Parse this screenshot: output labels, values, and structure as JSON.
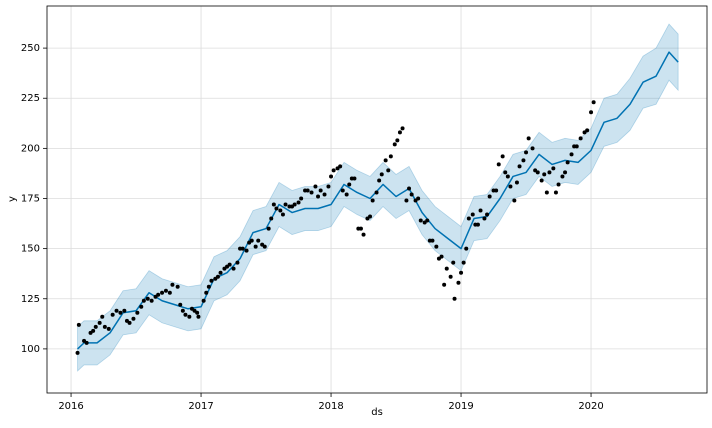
{
  "chart_data": {
    "type": "forecast",
    "xlabel": "ds",
    "ylabel": "y",
    "xlim": [
      2015.815,
      2020.892
    ],
    "ylim": [
      78,
      271
    ],
    "xticks": [
      2016,
      2017,
      2018,
      2019,
      2020
    ],
    "yticks": [
      100,
      125,
      150,
      175,
      200,
      225,
      250
    ],
    "grid": true,
    "forecast": {
      "color": "#0072B2",
      "x": [
        2016.05,
        2016.1,
        2016.2,
        2016.3,
        2016.4,
        2016.5,
        2016.6,
        2016.7,
        2016.8,
        2016.9,
        2017.0,
        2017.1,
        2017.2,
        2017.3,
        2017.4,
        2017.5,
        2017.6,
        2017.7,
        2017.8,
        2017.9,
        2018.0,
        2018.1,
        2018.2,
        2018.3,
        2018.4,
        2018.5,
        2018.6,
        2018.7,
        2018.8,
        2018.9,
        2019.0,
        2019.1,
        2019.2,
        2019.3,
        2019.4,
        2019.5,
        2019.6,
        2019.7,
        2019.8,
        2019.9,
        2020.0,
        2020.1,
        2020.2,
        2020.3,
        2020.4,
        2020.5,
        2020.6,
        2020.67
      ],
      "values": [
        100,
        103,
        103,
        108,
        118,
        119,
        128,
        124,
        122,
        120,
        121,
        135,
        138,
        145,
        158,
        160,
        172,
        168,
        170,
        170,
        172,
        182,
        178,
        175,
        182,
        176,
        180,
        168,
        160,
        155,
        150,
        165,
        166,
        175,
        186,
        188,
        197,
        192,
        194,
        193,
        199,
        213,
        215,
        222,
        233,
        236,
        248,
        243
      ],
      "lower": [
        89,
        92,
        92,
        97,
        107,
        108,
        117,
        113,
        111,
        109,
        110,
        124,
        127,
        134,
        147,
        149,
        161,
        157,
        159,
        159,
        161,
        171,
        167,
        164,
        171,
        165,
        169,
        157,
        149,
        144,
        139,
        154,
        155,
        164,
        175,
        177,
        186,
        181,
        183,
        182,
        188,
        201,
        203,
        209,
        220,
        222,
        234,
        229
      ],
      "upper": [
        111,
        114,
        114,
        119,
        129,
        130,
        139,
        135,
        133,
        131,
        132,
        146,
        149,
        156,
        169,
        171,
        183,
        179,
        181,
        181,
        183,
        193,
        189,
        186,
        193,
        187,
        191,
        179,
        171,
        166,
        161,
        176,
        177,
        186,
        197,
        199,
        208,
        203,
        205,
        204,
        210,
        225,
        227,
        235,
        246,
        250,
        262,
        257
      ]
    },
    "observed": {
      "color": "#000000",
      "x": [
        2016.05,
        2016.06,
        2016.1,
        2016.12,
        2016.15,
        2016.17,
        2016.19,
        2016.22,
        2016.24,
        2016.26,
        2016.29,
        2016.32,
        2016.35,
        2016.38,
        2016.41,
        2016.43,
        2016.45,
        2016.48,
        2016.51,
        2016.54,
        2016.56,
        2016.59,
        2016.62,
        2016.65,
        2016.67,
        2016.7,
        2016.73,
        2016.76,
        2016.78,
        2016.82,
        2016.84,
        2016.86,
        2016.88,
        2016.91,
        2016.93,
        2016.95,
        2016.97,
        2016.98,
        2017.02,
        2017.04,
        2017.06,
        2017.08,
        2017.11,
        2017.13,
        2017.15,
        2017.18,
        2017.2,
        2017.22,
        2017.25,
        2017.28,
        2017.3,
        2017.32,
        2017.35,
        2017.37,
        2017.39,
        2017.42,
        2017.44,
        2017.47,
        2017.49,
        2017.52,
        2017.54,
        2017.56,
        2017.58,
        2017.61,
        2017.63,
        2017.65,
        2017.68,
        2017.7,
        2017.72,
        2017.75,
        2017.77,
        2017.8,
        2017.82,
        2017.85,
        2017.88,
        2017.9,
        2017.92,
        2017.95,
        2017.98,
        2018.0,
        2018.02,
        2018.05,
        2018.07,
        2018.09,
        2018.12,
        2018.14,
        2018.16,
        2018.18,
        2018.21,
        2018.23,
        2018.25,
        2018.28,
        2018.3,
        2018.32,
        2018.35,
        2018.37,
        2018.39,
        2018.42,
        2018.44,
        2018.46,
        2018.49,
        2018.51,
        2018.53,
        2018.55,
        2018.58,
        2018.6,
        2018.62,
        2018.65,
        2018.67,
        2018.69,
        2018.72,
        2018.74,
        2018.76,
        2018.78,
        2018.81,
        2018.83,
        2018.85,
        2018.87,
        2018.89,
        2018.92,
        2018.94,
        2018.95,
        2018.98,
        2019.0,
        2019.02,
        2019.04,
        2019.06,
        2019.09,
        2019.11,
        2019.13,
        2019.15,
        2019.18,
        2019.2,
        2019.22,
        2019.25,
        2019.27,
        2019.29,
        2019.32,
        2019.34,
        2019.36,
        2019.38,
        2019.41,
        2019.43,
        2019.45,
        2019.48,
        2019.5,
        2019.52,
        2019.55,
        2019.57,
        2019.59,
        2019.62,
        2019.64,
        2019.66,
        2019.68,
        2019.71,
        2019.73,
        2019.75,
        2019.78,
        2019.8,
        2019.82,
        2019.85,
        2019.87,
        2019.89,
        2019.92,
        2019.95,
        2019.97,
        2020.0,
        2020.02
      ],
      "values": [
        98,
        112,
        104,
        103,
        108,
        109,
        111,
        113,
        116,
        111,
        110,
        117,
        119,
        118,
        119,
        114,
        113,
        115,
        118,
        121,
        124,
        125,
        124,
        126,
        127,
        128,
        129,
        128,
        132,
        131,
        122,
        119,
        117,
        116,
        120,
        119,
        118,
        116,
        124,
        128,
        131,
        134,
        135,
        136,
        138,
        140,
        141,
        142,
        140,
        143,
        150,
        150,
        149,
        153,
        154,
        151,
        154,
        152,
        151,
        160,
        165,
        172,
        170,
        169,
        167,
        172,
        171,
        171,
        172,
        173,
        175,
        179,
        179,
        178,
        181,
        176,
        179,
        177,
        181,
        186,
        189,
        190,
        191,
        179,
        177,
        182,
        185,
        185,
        160,
        160,
        157,
        165,
        166,
        174,
        178,
        184,
        187,
        194,
        189,
        196,
        202,
        204,
        208,
        210,
        174,
        180,
        177,
        174,
        175,
        164,
        163,
        164,
        154,
        154,
        151,
        145,
        146,
        132,
        140,
        136,
        143,
        125,
        133,
        138,
        143,
        150,
        165,
        167,
        162,
        162,
        169,
        165,
        167,
        176,
        179,
        179,
        192,
        196,
        188,
        186,
        181,
        174,
        183,
        191,
        194,
        198,
        205,
        200,
        189,
        188,
        184,
        187,
        178,
        188,
        190,
        178,
        182,
        186,
        188,
        193,
        197,
        201,
        201,
        205,
        208,
        209,
        218,
        223
      ]
    }
  }
}
